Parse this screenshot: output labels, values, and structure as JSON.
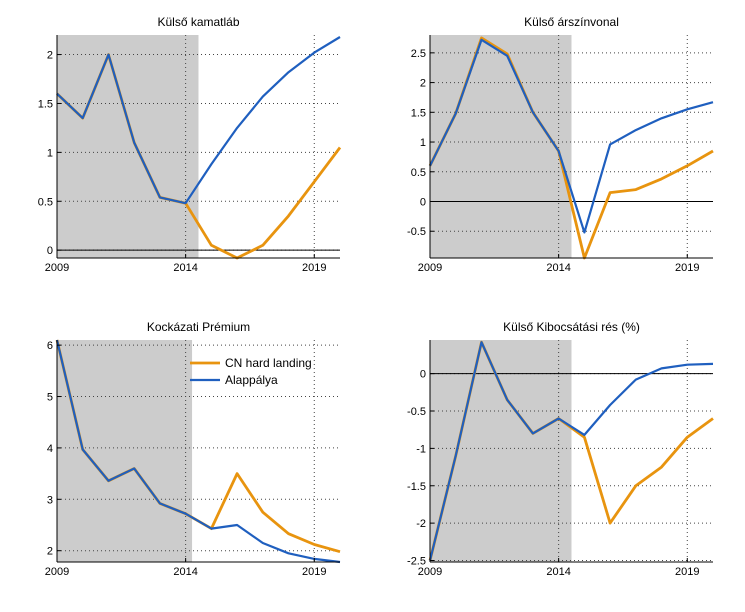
{
  "colors": {
    "baseline": "#1f5fbf",
    "scenario": "#e8940f",
    "history_shade": "#cccccc",
    "grid": "#444444"
  },
  "legend": {
    "scenario_label": "CN hard landing",
    "baseline_label": "Alappálya"
  },
  "chart_data": [
    {
      "type": "line",
      "title": "Külső kamatláb",
      "xlim": [
        2009,
        2020
      ],
      "ylim": [
        -0.08,
        2.2
      ],
      "xticks": [
        2009,
        2014,
        2019
      ],
      "yticks": [
        0,
        0.5,
        1,
        1.5,
        2
      ],
      "ytick_labels": [
        "0",
        "0.5",
        "1",
        "1.5",
        "2"
      ],
      "shade_range": [
        2009,
        2014.5
      ],
      "zero_line": true,
      "x": [
        2009,
        2010,
        2011,
        2012,
        2013,
        2014,
        2015,
        2016,
        2017,
        2018,
        2019,
        2020
      ],
      "series": [
        {
          "name": "CN hard landing",
          "values": [
            1.6,
            1.35,
            2.0,
            1.1,
            0.54,
            0.48,
            0.05,
            -0.08,
            0.05,
            0.35,
            0.7,
            1.05
          ]
        },
        {
          "name": "Alappálya",
          "values": [
            1.6,
            1.35,
            2.0,
            1.1,
            0.54,
            0.48,
            0.88,
            1.25,
            1.57,
            1.82,
            2.02,
            2.18
          ]
        }
      ]
    },
    {
      "type": "line",
      "title": "Külső árszínvonal",
      "xlim": [
        2009,
        2020
      ],
      "ylim": [
        -0.95,
        2.8
      ],
      "xticks": [
        2009,
        2014,
        2019
      ],
      "yticks": [
        -0.5,
        0,
        0.5,
        1,
        1.5,
        2,
        2.5
      ],
      "ytick_labels": [
        "-0.5",
        "0",
        "0.5",
        "1",
        "1.5",
        "2",
        "2.5"
      ],
      "shade_range": [
        2009,
        2014.5
      ],
      "zero_line": true,
      "x": [
        2009,
        2010,
        2011,
        2012,
        2013,
        2014,
        2015,
        2016,
        2017,
        2018,
        2019,
        2020
      ],
      "series": [
        {
          "name": "CN hard landing",
          "values": [
            0.6,
            1.48,
            2.75,
            2.48,
            1.5,
            0.85,
            -0.95,
            0.15,
            0.2,
            0.38,
            0.6,
            0.85
          ]
        },
        {
          "name": "Alappálya",
          "values": [
            0.6,
            1.48,
            2.72,
            2.45,
            1.5,
            0.85,
            -0.52,
            0.96,
            1.2,
            1.4,
            1.55,
            1.67
          ]
        }
      ]
    },
    {
      "type": "line",
      "title": "Kockázati Prémium",
      "xlim": [
        2009,
        2020
      ],
      "ylim": [
        1.78,
        6.1
      ],
      "xticks": [
        2009,
        2014,
        2019
      ],
      "yticks": [
        2,
        3,
        4,
        5,
        6
      ],
      "ytick_labels": [
        "2",
        "3",
        "4",
        "5",
        "6"
      ],
      "shade_range": [
        2009,
        2014.25
      ],
      "zero_line": false,
      "legend": "top-right",
      "x": [
        2009,
        2010,
        2011,
        2012,
        2013,
        2014,
        2015,
        2016,
        2017,
        2018,
        2019,
        2020
      ],
      "series": [
        {
          "name": "CN hard landing",
          "values": [
            6.1,
            3.97,
            3.36,
            3.6,
            2.92,
            2.72,
            2.43,
            3.5,
            2.75,
            2.33,
            2.12,
            1.98
          ]
        },
        {
          "name": "Alappálya",
          "values": [
            6.1,
            3.97,
            3.36,
            3.6,
            2.92,
            2.72,
            2.43,
            2.5,
            2.15,
            1.95,
            1.84,
            1.78
          ]
        }
      ]
    },
    {
      "type": "line",
      "title": "Külső Kibocsátási rés (%)",
      "xlim": [
        2009,
        2020
      ],
      "ylim": [
        -2.52,
        0.45
      ],
      "xticks": [
        2009,
        2014,
        2019
      ],
      "yticks": [
        -2.5,
        -2,
        -1.5,
        -1,
        -0.5,
        0
      ],
      "ytick_labels": [
        "-2.5",
        "-2",
        "-1.5",
        "-1",
        "-0.5",
        "0"
      ],
      "shade_range": [
        2009,
        2014.5
      ],
      "zero_line": true,
      "x": [
        2009,
        2010,
        2011,
        2012,
        2013,
        2014,
        2015,
        2016,
        2017,
        2018,
        2019,
        2020
      ],
      "series": [
        {
          "name": "CN hard landing",
          "values": [
            -2.5,
            -1.1,
            0.42,
            -0.35,
            -0.8,
            -0.6,
            -0.85,
            -2.0,
            -1.5,
            -1.25,
            -0.85,
            -0.6
          ]
        },
        {
          "name": "Alappálya",
          "values": [
            -2.5,
            -1.1,
            0.42,
            -0.35,
            -0.8,
            -0.6,
            -0.82,
            -0.42,
            -0.08,
            0.07,
            0.12,
            0.13
          ]
        }
      ]
    }
  ]
}
